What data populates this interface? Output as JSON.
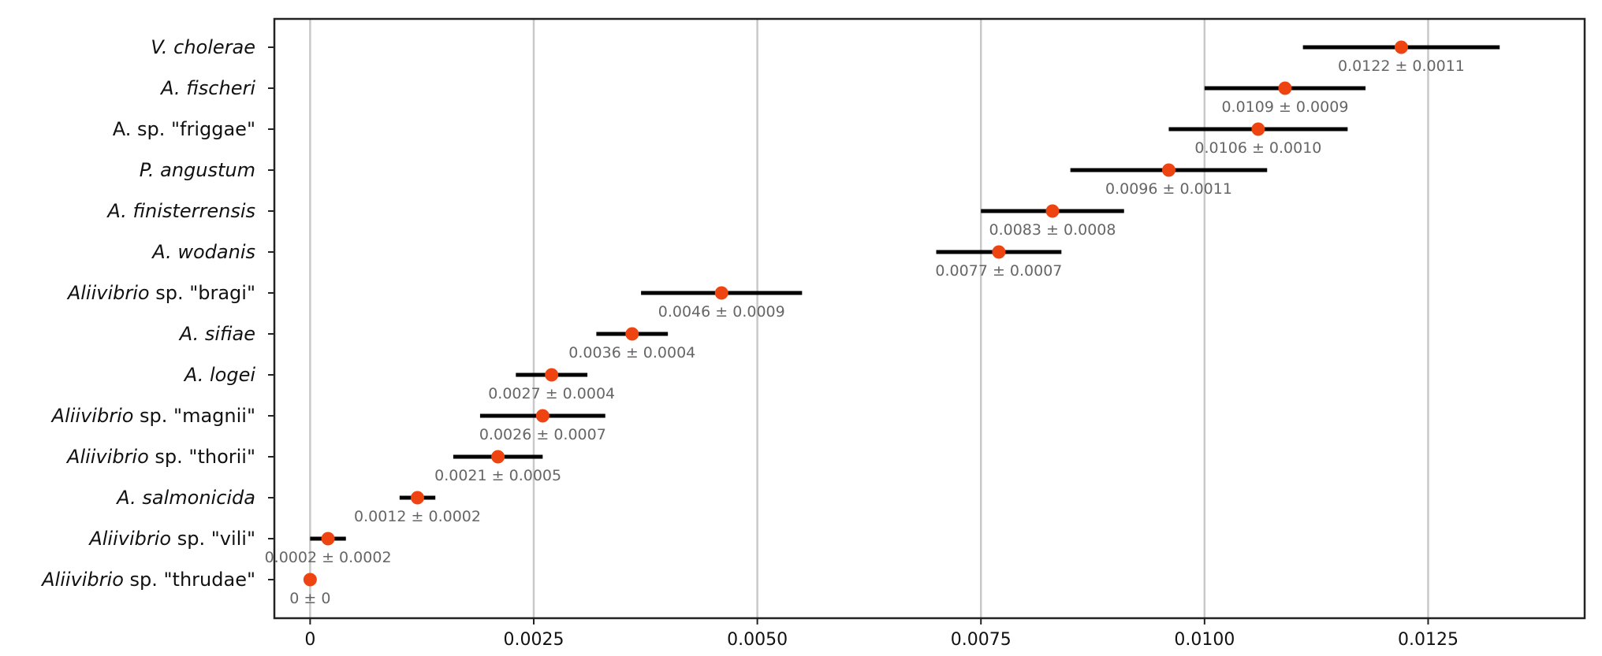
{
  "chart_data": {
    "type": "scatter",
    "subtype": "dot-with-horizontal-error-bars",
    "title": "",
    "xlabel": "",
    "ylabel": "",
    "xlim": [
      -0.0004,
      0.01425
    ],
    "xticks": [
      0,
      0.0025,
      0.005,
      0.0075,
      0.01,
      0.0125
    ],
    "xtick_labels": [
      "0",
      "0.0025",
      "0.0050",
      "0.0075",
      "0.0100",
      "0.0125"
    ],
    "grid": "vertical",
    "point_color": "#ee4411",
    "bar_color": "#000000",
    "points": [
      {
        "name_italic": "V. cholerae",
        "name_plain": "",
        "value": 0.0122,
        "error": 0.0011,
        "label": "0.0122 ± 0.0011"
      },
      {
        "name_italic": "A. fischeri",
        "name_plain": "",
        "value": 0.0109,
        "error": 0.0009,
        "label": "0.0109 ± 0.0009"
      },
      {
        "name_italic": "",
        "name_plain": "A. sp. \"friggae\"",
        "value": 0.0106,
        "error": 0.001,
        "label": "0.0106 ± 0.0010"
      },
      {
        "name_italic": "P. angustum",
        "name_plain": "",
        "value": 0.0096,
        "error": 0.0011,
        "label": "0.0096 ± 0.0011"
      },
      {
        "name_italic": "A. finisterrensis",
        "name_plain": "",
        "value": 0.0083,
        "error": 0.0008,
        "label": "0.0083 ± 0.0008"
      },
      {
        "name_italic": "A. wodanis",
        "name_plain": "",
        "value": 0.0077,
        "error": 0.0007,
        "label": "0.0077 ± 0.0007"
      },
      {
        "name_italic": "Aliivibrio",
        "name_plain": " sp. \"bragi\"",
        "value": 0.0046,
        "error": 0.0009,
        "label": "0.0046 ± 0.0009"
      },
      {
        "name_italic": "A. sifiae",
        "name_plain": "",
        "value": 0.0036,
        "error": 0.0004,
        "label": "0.0036 ± 0.0004"
      },
      {
        "name_italic": "A. logei",
        "name_plain": "",
        "value": 0.0027,
        "error": 0.0004,
        "label": "0.0027 ± 0.0004"
      },
      {
        "name_italic": "Aliivibrio",
        "name_plain": " sp. \"magnii\"",
        "value": 0.0026,
        "error": 0.0007,
        "label": "0.0026 ± 0.0007"
      },
      {
        "name_italic": "Aliivibrio",
        "name_plain": " sp. \"thorii\"",
        "value": 0.0021,
        "error": 0.0005,
        "label": "0.0021 ± 0.0005"
      },
      {
        "name_italic": "A. salmonicida",
        "name_plain": "",
        "value": 0.0012,
        "error": 0.0002,
        "label": "0.0012 ± 0.0002"
      },
      {
        "name_italic": "Aliivibrio",
        "name_plain": " sp. \"vili\"",
        "value": 0.0002,
        "error": 0.0002,
        "label": "0.0002 ± 0.0002"
      },
      {
        "name_italic": "Aliivibrio",
        "name_plain": " sp. \"thrudae\"",
        "value": 0,
        "error": 0,
        "label": "0 ± 0"
      }
    ]
  }
}
